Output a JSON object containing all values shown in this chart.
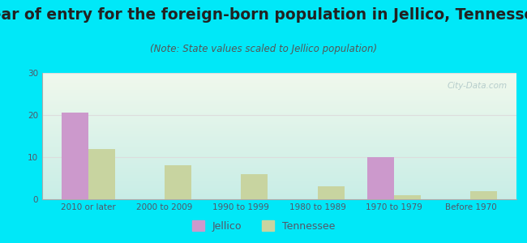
{
  "title": "Year of entry for the foreign-born population in Jellico, Tennessee",
  "subtitle": "(Note: State values scaled to Jellico population)",
  "categories": [
    "2010 or later",
    "2000 to 2009",
    "1990 to 1999",
    "1980 to 1989",
    "1970 to 1979",
    "Before 1970"
  ],
  "jellico_values": [
    20.5,
    0,
    0,
    0,
    10,
    0
  ],
  "tennessee_values": [
    12,
    8,
    6,
    3,
    1,
    2
  ],
  "jellico_color": "#cc99cc",
  "tennessee_color": "#c8d4a0",
  "ylim": [
    0,
    30
  ],
  "yticks": [
    0,
    10,
    20,
    30
  ],
  "background_outer": "#00e8f8",
  "bg_top": "#f0f8ec",
  "bg_bottom": "#c8ede6",
  "bar_width": 0.35,
  "title_fontsize": 13.5,
  "subtitle_fontsize": 8.5,
  "tick_fontsize": 7.5,
  "legend_fontsize": 9,
  "title_color": "#222222",
  "subtitle_color": "#555555",
  "tick_color": "#555566",
  "watermark_color": "#b0c8c8",
  "grid_color": "#dddddd"
}
